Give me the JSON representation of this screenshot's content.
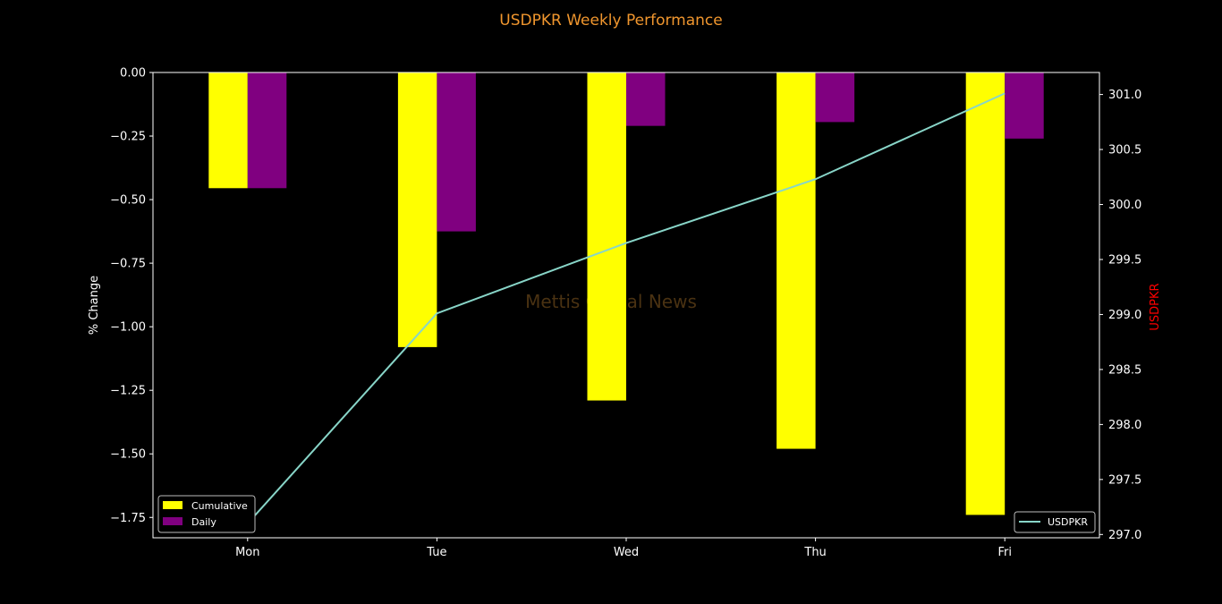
{
  "chart_data": {
    "type": "bar",
    "title": "USDPKR Weekly Performance",
    "watermark": "Mettis Global News",
    "categories": [
      "Mon",
      "Tue",
      "Wed",
      "Thu",
      "Fri"
    ],
    "left_axis": {
      "label": "% Change",
      "ylim": [
        -1.83,
        0.0
      ],
      "ticks": [
        "0.00",
        "−0.25",
        "−0.50",
        "−0.75",
        "−1.00",
        "−1.25",
        "−1.50",
        "−1.75"
      ],
      "tick_values": [
        0.0,
        -0.25,
        -0.5,
        -0.75,
        -1.0,
        -1.25,
        -1.5,
        -1.75
      ]
    },
    "right_axis": {
      "label": "USDPKR",
      "ylim": [
        296.97,
        301.2
      ],
      "ticks": [
        "301.0",
        "300.5",
        "300.0",
        "299.5",
        "299.0",
        "298.5",
        "298.0",
        "297.5",
        "297.0"
      ],
      "tick_values": [
        301.0,
        300.5,
        300.0,
        299.5,
        299.0,
        298.5,
        298.0,
        297.5,
        297.0
      ]
    },
    "bar_series": [
      {
        "name": "Cumulative",
        "color": "#ffff00",
        "values": [
          -0.455,
          -1.08,
          -1.29,
          -1.48,
          -1.74
        ]
      },
      {
        "name": "Daily",
        "color": "#800080",
        "values": [
          -0.455,
          -0.625,
          -0.21,
          -0.195,
          -0.26
        ]
      }
    ],
    "line_series": [
      {
        "name": "USDPKR",
        "color": "#88d5c8",
        "values": [
          297.1,
          299.01,
          299.65,
          300.23,
          301.01
        ]
      }
    ],
    "legend_left_position": "lower-left",
    "legend_right_position": "lower-right",
    "grid": false
  },
  "colors": {
    "title": "#f0962e",
    "right_axis_label": "#ff0000",
    "text": "#ffffff",
    "watermark": "#4a3212"
  }
}
